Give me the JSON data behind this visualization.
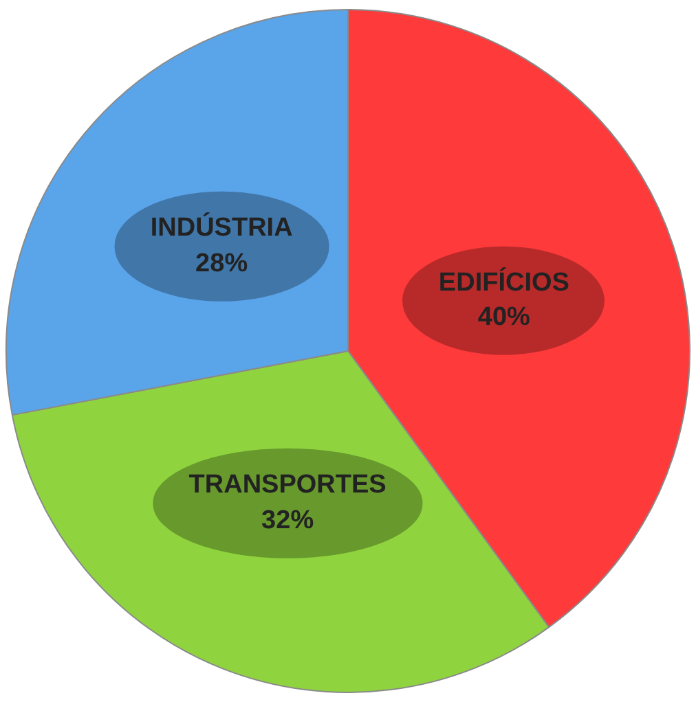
{
  "chart_data": {
    "type": "pie",
    "categories": [
      "EDIFÍCIOS",
      "TRANSPORTES",
      "INDÚSTRIA"
    ],
    "values": [
      40,
      32,
      28
    ],
    "value_labels": [
      "40%",
      "32%",
      "28%"
    ],
    "colors": [
      "#ff3a3a",
      "#8fd43f",
      "#5aa4ea"
    ],
    "legend": false
  }
}
